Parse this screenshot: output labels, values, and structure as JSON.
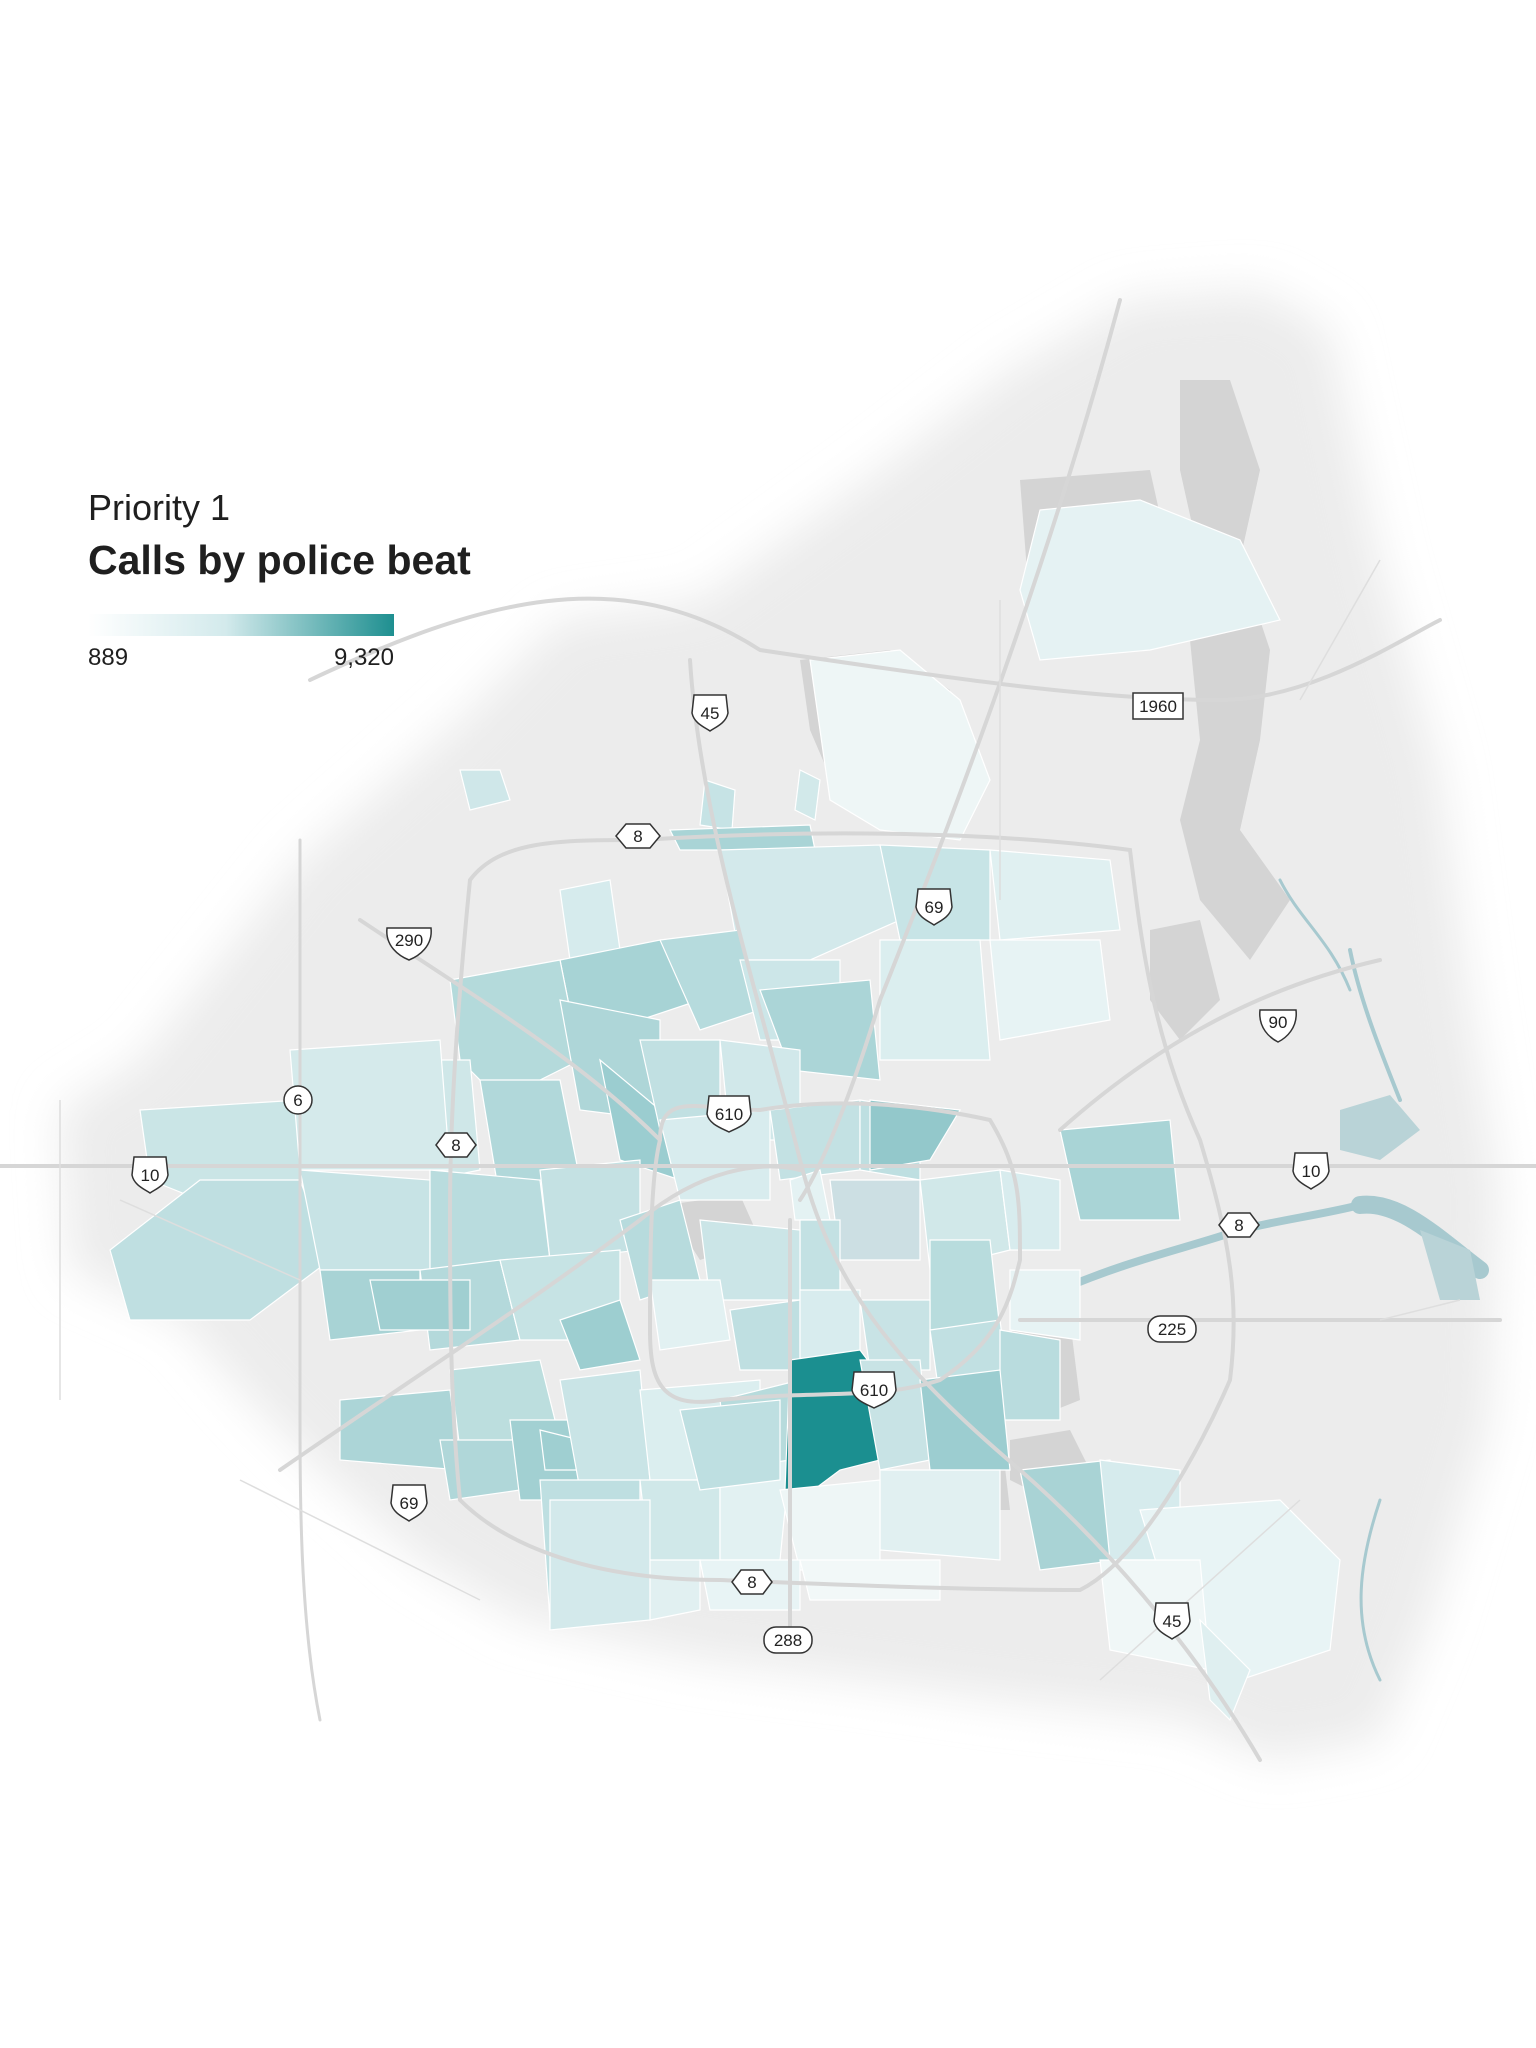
{
  "legend": {
    "kicker": "Priority 1",
    "title": "Calls by police beat",
    "min_label": "889",
    "max_label": "9,320",
    "color_low": "#ffffff",
    "color_high": "#1e8f90"
  },
  "colors": {
    "land": "#ececec",
    "water": "#a7c9cf",
    "road": "#d6d6d6",
    "park": "#d4d4d4"
  },
  "route_shields": [
    {
      "label": "45",
      "type": "interstate"
    },
    {
      "label": "1960",
      "type": "state"
    },
    {
      "label": "8",
      "type": "beltway"
    },
    {
      "label": "69",
      "type": "interstate"
    },
    {
      "label": "290",
      "type": "us"
    },
    {
      "label": "90",
      "type": "us"
    },
    {
      "label": "6",
      "type": "us"
    },
    {
      "label": "610",
      "type": "interstate"
    },
    {
      "label": "8",
      "type": "beltway"
    },
    {
      "label": "10",
      "type": "interstate"
    },
    {
      "label": "10",
      "type": "interstate"
    },
    {
      "label": "8",
      "type": "beltway"
    },
    {
      "label": "225",
      "type": "state"
    },
    {
      "label": "610",
      "type": "interstate"
    },
    {
      "label": "69",
      "type": "interstate"
    },
    {
      "label": "8",
      "type": "beltway"
    },
    {
      "label": "288",
      "type": "state"
    },
    {
      "label": "45",
      "type": "interstate"
    }
  ]
}
